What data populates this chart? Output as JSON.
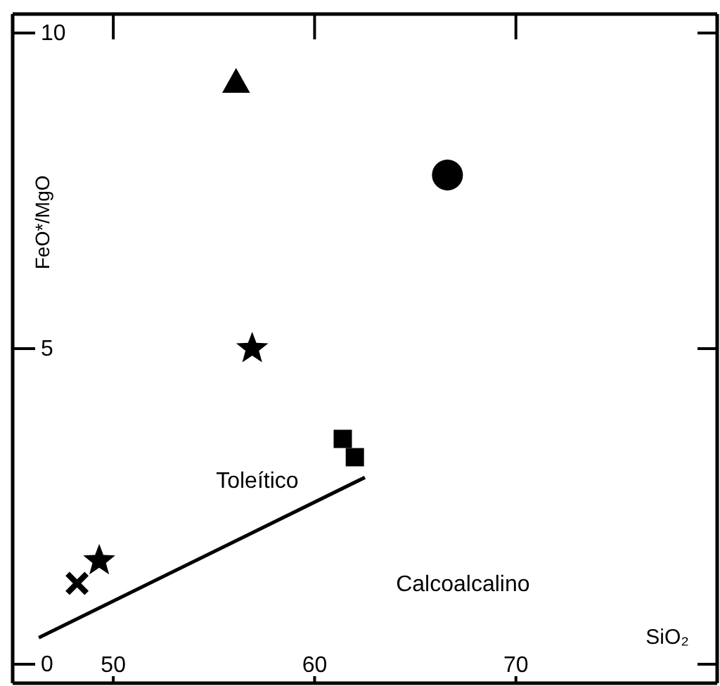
{
  "chart_data": {
    "type": "scatter",
    "xlabel": "SiO₂",
    "ylabel": "FeO*/MgO",
    "xlim": [
      45,
      80
    ],
    "ylim": [
      -0.3,
      10.3
    ],
    "xticks": [
      50,
      60,
      70
    ],
    "yticks": [
      0,
      5,
      10
    ],
    "grid": false,
    "series": [
      {
        "type": "scatter",
        "marker": "triangle",
        "color": "#000000",
        "x": [
          56.1
        ],
        "values": [
          9.2
        ]
      },
      {
        "type": "scatter",
        "marker": "circle",
        "color": "#000000",
        "x": [
          66.6
        ],
        "values": [
          7.75
        ]
      },
      {
        "type": "scatter",
        "marker": "star",
        "color": "#000000",
        "x": [
          56.9,
          49.3
        ],
        "values": [
          5.0,
          1.64
        ]
      },
      {
        "type": "scatter",
        "marker": "square",
        "color": "#000000",
        "x": [
          61.4,
          62.0
        ],
        "values": [
          3.57,
          3.28
        ]
      },
      {
        "type": "scatter",
        "marker": "cross",
        "color": "#000000",
        "x": [
          48.2
        ],
        "values": [
          1.28
        ]
      },
      {
        "type": "line",
        "marker": "none",
        "line_style": "solid",
        "color": "#000000",
        "x": [
          46.3,
          62.5
        ],
        "values": [
          0.42,
          2.96
        ]
      }
    ],
    "annotations": [
      "Toleítico",
      "Calcoalcalino"
    ]
  }
}
